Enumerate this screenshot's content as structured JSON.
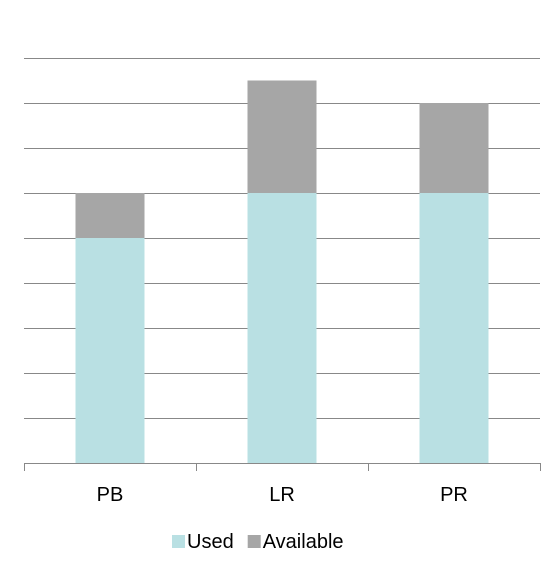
{
  "chart_data": {
    "type": "bar",
    "stacked": true,
    "categories": [
      "PB",
      "LR",
      "PR"
    ],
    "series": [
      {
        "name": "Used",
        "values": [
          5,
          6,
          6
        ],
        "color": "#b9e0e3"
      },
      {
        "name": "Available",
        "values": [
          1,
          2.5,
          2
        ],
        "color": "#a6a6a6"
      }
    ],
    "title": "",
    "xlabel": "",
    "ylabel": "",
    "ylim": [
      0,
      9
    ],
    "y_major_step": 1,
    "y_tick_labels_shown": false,
    "grid": true,
    "grid_color": "#888888",
    "legend": "bottom"
  }
}
